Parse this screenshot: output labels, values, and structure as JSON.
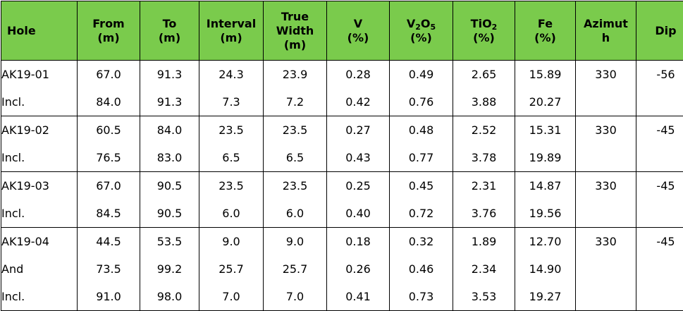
{
  "header": {
    "hole": "Hole",
    "from": [
      "From",
      "(m)"
    ],
    "to": [
      "To",
      "(m)"
    ],
    "interval": [
      "Interval",
      "(m)"
    ],
    "true_width": [
      "True",
      "Width",
      "(m)"
    ],
    "v": [
      "V",
      "(%)"
    ],
    "v2o5": {
      "v": "V",
      "sub1": "2",
      "o": "O",
      "sub2": "5",
      "unit": "(%)"
    },
    "tio2": {
      "t": "TiO",
      "sub": "2",
      "unit": "(%)"
    },
    "fe": [
      "Fe",
      "(%)"
    ],
    "azimuth": [
      "Azimut",
      "h"
    ],
    "dip": "Dip"
  },
  "groups": [
    {
      "azimuth": "330",
      "dip": "-56",
      "rows": [
        {
          "hole": "AK19-01",
          "from": "67.0",
          "to": "91.3",
          "interval": "24.3",
          "true_width": "23.9",
          "v": "0.28",
          "v2o5": "0.49",
          "tio2": "2.65",
          "fe": "15.89"
        },
        {
          "hole": "Incl.",
          "from": "84.0",
          "to": "91.3",
          "interval": "7.3",
          "true_width": "7.2",
          "v": "0.42",
          "v2o5": "0.76",
          "tio2": "3.88",
          "fe": "20.27"
        }
      ]
    },
    {
      "azimuth": "330",
      "dip": "-45",
      "rows": [
        {
          "hole": "AK19-02",
          "from": "60.5",
          "to": "84.0",
          "interval": "23.5",
          "true_width": "23.5",
          "v": "0.27",
          "v2o5": "0.48",
          "tio2": "2.52",
          "fe": "15.31"
        },
        {
          "hole": "Incl.",
          "from": "76.5",
          "to": "83.0",
          "interval": "6.5",
          "true_width": "6.5",
          "v": "0.43",
          "v2o5": "0.77",
          "tio2": "3.78",
          "fe": "19.89"
        }
      ]
    },
    {
      "azimuth": "330",
      "dip": "-45",
      "rows": [
        {
          "hole": "AK19-03",
          "from": "67.0",
          "to": "90.5",
          "interval": "23.5",
          "true_width": "23.5",
          "v": "0.25",
          "v2o5": "0.45",
          "tio2": "2.31",
          "fe": "14.87"
        },
        {
          "hole": "Incl.",
          "from": "84.5",
          "to": "90.5",
          "interval": "6.0",
          "true_width": "6.0",
          "v": "0.40",
          "v2o5": "0.72",
          "tio2": "3.76",
          "fe": "19.56"
        }
      ]
    },
    {
      "azimuth": "330",
      "dip": "-45",
      "rows": [
        {
          "hole": "AK19-04",
          "from": "44.5",
          "to": "53.5",
          "interval": "9.0",
          "true_width": "9.0",
          "v": "0.18",
          "v2o5": "0.32",
          "tio2": "1.89",
          "fe": "12.70"
        },
        {
          "hole": "And",
          "from": "73.5",
          "to": "99.2",
          "interval": "25.7",
          "true_width": "25.7",
          "v": "0.26",
          "v2o5": "0.46",
          "tio2": "2.34",
          "fe": "14.90"
        },
        {
          "hole": "Incl.",
          "from": "91.0",
          "to": "98.0",
          "interval": "7.0",
          "true_width": "7.0",
          "v": "0.41",
          "v2o5": "0.73",
          "tio2": "3.53",
          "fe": "19.27"
        }
      ]
    }
  ]
}
